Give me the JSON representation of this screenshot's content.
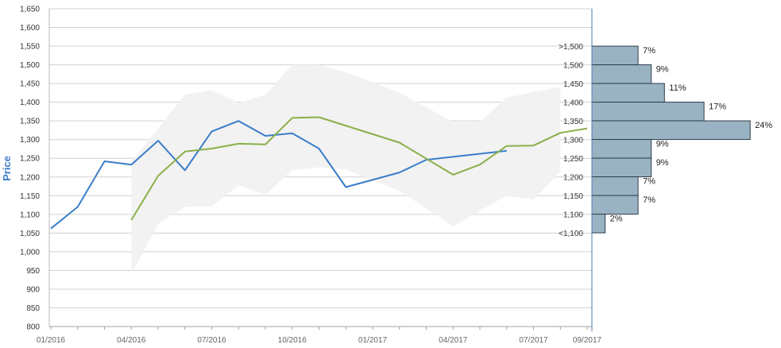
{
  "chart_data": {
    "type": "line",
    "ylabel": "Price",
    "ylim": [
      800,
      1650
    ],
    "y_ticks": [
      "800",
      "850",
      "900",
      "950",
      "1,000",
      "1,050",
      "1,100",
      "1,150",
      "1,200",
      "1,250",
      "1,300",
      "1,350",
      "1,400",
      "1,450",
      "1,500",
      "1,550",
      "1,600",
      "1,650"
    ],
    "x_ticks": [
      "01/2016",
      "04/2016",
      "07/2016",
      "10/2016",
      "01/2017",
      "04/2017",
      "07/2017",
      "09/2017"
    ],
    "grid": true,
    "series": [
      {
        "color": "#3a7dc8",
        "points": [
          [
            "2016-01",
            1062
          ],
          [
            "2016-02",
            1120
          ],
          [
            "2016-03",
            1242
          ],
          [
            "2016-04",
            1233
          ],
          [
            "2016-05",
            1297
          ],
          [
            "2016-06",
            1218
          ],
          [
            "2016-07",
            1322
          ],
          [
            "2016-08",
            1350
          ],
          [
            "2016-09",
            1310
          ],
          [
            "2016-10",
            1317
          ],
          [
            "2016-11",
            1276
          ],
          [
            "2016-12",
            1173
          ],
          [
            "2017-02",
            1212
          ],
          [
            "2017-03",
            1246
          ],
          [
            "2017-06",
            1270
          ]
        ]
      },
      {
        "color": "#8ab04a",
        "points": [
          [
            "2016-04",
            1085
          ],
          [
            "2016-05",
            1203
          ],
          [
            "2016-06",
            1268
          ],
          [
            "2016-07",
            1276
          ],
          [
            "2016-08",
            1289
          ],
          [
            "2016-09",
            1287
          ],
          [
            "2016-10",
            1358
          ],
          [
            "2016-11",
            1360
          ],
          [
            "2017-02",
            1292
          ],
          [
            "2017-04",
            1206
          ],
          [
            "2017-05",
            1233
          ],
          [
            "2017-06",
            1283
          ],
          [
            "2017-07",
            1284
          ],
          [
            "2017-08",
            1318
          ],
          [
            "2017-09",
            1330
          ]
        ]
      }
    ],
    "band": {
      "color": "#f2f2f2",
      "points": [
        [
          "2016-04",
          940,
          1240
        ],
        [
          "2016-05",
          1075,
          1330
        ],
        [
          "2016-06",
          1120,
          1420
        ],
        [
          "2016-07",
          1122,
          1432
        ],
        [
          "2016-08",
          1178,
          1398
        ],
        [
          "2016-09",
          1152,
          1420
        ],
        [
          "2016-10",
          1218,
          1500
        ],
        [
          "2016-11",
          1226,
          1500
        ],
        [
          "2016-12",
          1220,
          1480
        ],
        [
          "2017-02",
          1163,
          1426
        ],
        [
          "2017-04",
          1068,
          1347
        ],
        [
          "2017-05",
          1110,
          1348
        ],
        [
          "2017-06",
          1150,
          1412
        ],
        [
          "2017-07",
          1140,
          1428
        ],
        [
          "2017-08",
          1215,
          1440
        ]
      ]
    },
    "histogram": {
      "color": "#9ab3c3",
      "bins": [
        {
          "label": ">1,500",
          "pct_label": "7%",
          "value": 7
        },
        {
          "label": "1,500",
          "pct_label": "9%",
          "value": 9
        },
        {
          "label": "1,450",
          "pct_label": "11%",
          "value": 11
        },
        {
          "label": "1,400",
          "pct_label": "17%",
          "value": 17
        },
        {
          "label": "1,350",
          "pct_label": "24%",
          "value": 24
        },
        {
          "label": "1,300",
          "pct_label": "9%",
          "value": 9
        },
        {
          "label": "1,250",
          "pct_label": "9%",
          "value": 9
        },
        {
          "label": "1,200",
          "pct_label": "7%",
          "value": 7
        },
        {
          "label": "1,150",
          "pct_label": "7%",
          "value": 7
        },
        {
          "label": "1,100",
          "pct_label": "2%",
          "value": 2
        },
        {
          "label": "<1,100",
          "pct_label": "",
          "value": 0
        }
      ]
    }
  }
}
